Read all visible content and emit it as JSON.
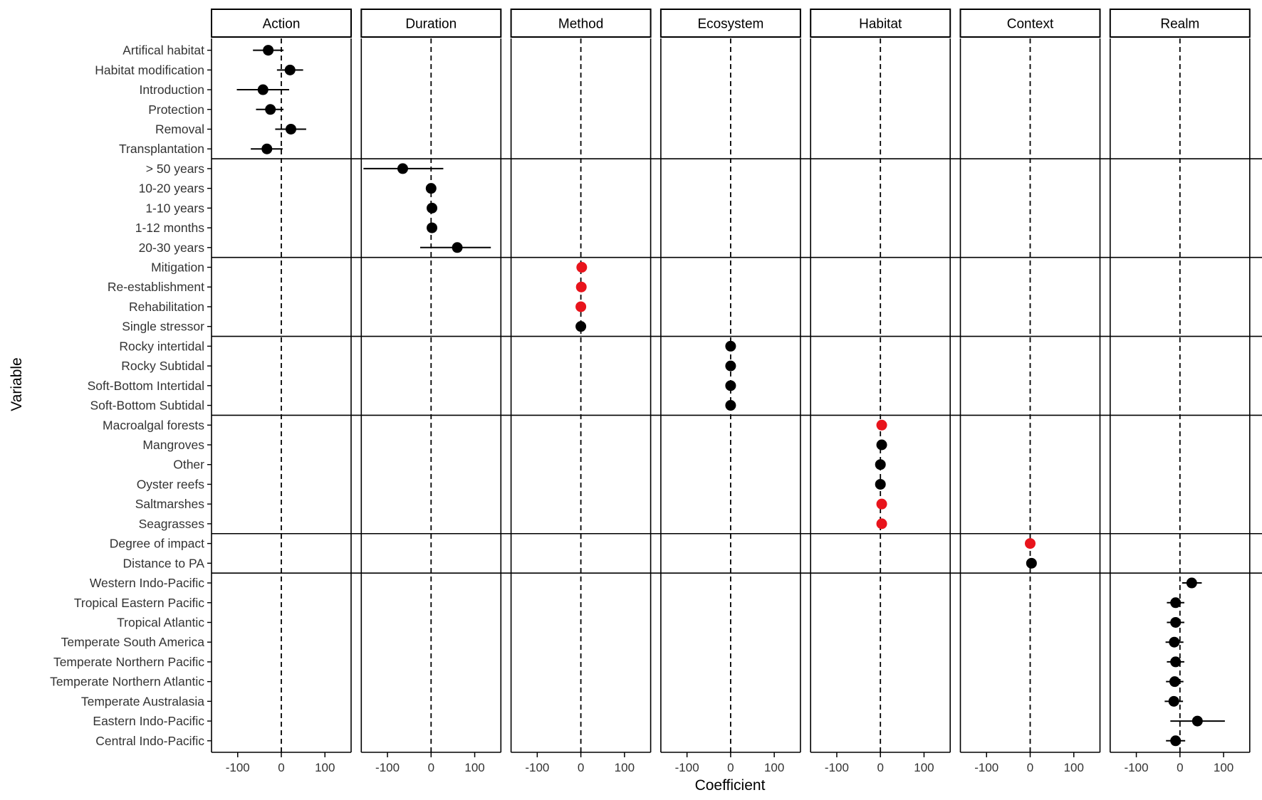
{
  "chart_data": {
    "type": "scatter",
    "xlabel": "Coefficient",
    "ylabel": "Variable",
    "xlim": [
      -160,
      160
    ],
    "x_ticks": [
      -100,
      0,
      100
    ],
    "reference_line": 0,
    "colors": {
      "point": "#000000",
      "highlight": "#e8141c"
    },
    "facets": [
      "Action",
      "Duration",
      "Method",
      "Ecosystem",
      "Habitat",
      "Context",
      "Realm"
    ],
    "groups": [
      {
        "facet": "Action",
        "items": [
          {
            "label": "Artifical habitat",
            "estimate": -30,
            "low": -65,
            "high": 5,
            "highlight": false
          },
          {
            "label": "Habitat modification",
            "estimate": 20,
            "low": -10,
            "high": 50,
            "highlight": false
          },
          {
            "label": "Introduction",
            "estimate": -42,
            "low": -102,
            "high": 18,
            "highlight": false
          },
          {
            "label": "Protection",
            "estimate": -25,
            "low": -58,
            "high": 5,
            "highlight": false
          },
          {
            "label": "Removal",
            "estimate": 22,
            "low": -14,
            "high": 57,
            "highlight": false
          },
          {
            "label": "Transplantation",
            "estimate": -33,
            "low": -70,
            "high": 3,
            "highlight": false
          }
        ]
      },
      {
        "facet": "Duration",
        "items": [
          {
            "label": "> 50 years",
            "estimate": -65,
            "low": -155,
            "high": 28,
            "highlight": false
          },
          {
            "label": "10-20 years",
            "estimate": 0,
            "low": -5,
            "high": 5,
            "highlight": false
          },
          {
            "label": "1-10 years",
            "estimate": 2,
            "low": -3,
            "high": 7,
            "highlight": false
          },
          {
            "label": "1-12 months",
            "estimate": 2,
            "low": -3,
            "high": 7,
            "highlight": false
          },
          {
            "label": "20-30 years",
            "estimate": 60,
            "low": -25,
            "high": 137,
            "highlight": false
          }
        ]
      },
      {
        "facet": "Method",
        "items": [
          {
            "label": "Mitigation",
            "estimate": 2,
            "low": -4,
            "high": 8,
            "highlight": true
          },
          {
            "label": "Re-establishment",
            "estimate": 1,
            "low": -5,
            "high": 7,
            "highlight": true
          },
          {
            "label": "Rehabilitation",
            "estimate": 0,
            "low": -6,
            "high": 6,
            "highlight": true
          },
          {
            "label": "Single stressor",
            "estimate": 0,
            "low": -5,
            "high": 5,
            "highlight": false
          }
        ]
      },
      {
        "facet": "Ecosystem",
        "items": [
          {
            "label": "Rocky intertidal",
            "estimate": 0,
            "low": -5,
            "high": 5,
            "highlight": false
          },
          {
            "label": "Rocky Subtidal",
            "estimate": 0,
            "low": -5,
            "high": 5,
            "highlight": false
          },
          {
            "label": "Soft-Bottom Intertidal",
            "estimate": 0,
            "low": -5,
            "high": 5,
            "highlight": false
          },
          {
            "label": "Soft-Bottom Subtidal",
            "estimate": 0,
            "low": -5,
            "high": 5,
            "highlight": false
          }
        ]
      },
      {
        "facet": "Habitat",
        "items": [
          {
            "label": "Macroalgal forests",
            "estimate": 3,
            "low": -3,
            "high": 9,
            "highlight": true
          },
          {
            "label": "Mangroves",
            "estimate": 3,
            "low": -3,
            "high": 9,
            "highlight": false
          },
          {
            "label": "Other",
            "estimate": 0,
            "low": -5,
            "high": 5,
            "highlight": false
          },
          {
            "label": "Oyster reefs",
            "estimate": 0,
            "low": -5,
            "high": 5,
            "highlight": false
          },
          {
            "label": "Saltmarshes",
            "estimate": 3,
            "low": -3,
            "high": 9,
            "highlight": true
          },
          {
            "label": "Seagrasses",
            "estimate": 3,
            "low": -3,
            "high": 9,
            "highlight": true
          }
        ]
      },
      {
        "facet": "Context",
        "items": [
          {
            "label": "Degree of impact",
            "estimate": 0,
            "low": -5,
            "high": 5,
            "highlight": true
          },
          {
            "label": "Distance to PA",
            "estimate": 3,
            "low": -2,
            "high": 8,
            "highlight": false
          }
        ]
      },
      {
        "facet": "Realm",
        "items": [
          {
            "label": "Western Indo-Pacific",
            "estimate": 27,
            "low": 5,
            "high": 50,
            "highlight": false
          },
          {
            "label": "Tropical Eastern Pacific",
            "estimate": -10,
            "low": -30,
            "high": 10,
            "highlight": false
          },
          {
            "label": "Tropical Atlantic",
            "estimate": -10,
            "low": -30,
            "high": 10,
            "highlight": false
          },
          {
            "label": "Temperate South America",
            "estimate": -13,
            "low": -33,
            "high": 8,
            "highlight": false
          },
          {
            "label": "Temperate Northern Pacific",
            "estimate": -10,
            "low": -30,
            "high": 10,
            "highlight": false
          },
          {
            "label": "Temperate Northern Atlantic",
            "estimate": -12,
            "low": -32,
            "high": 8,
            "highlight": false
          },
          {
            "label": "Temperate Australasia",
            "estimate": -14,
            "low": -35,
            "high": 7,
            "highlight": false
          },
          {
            "label": "Eastern Indo-Pacific",
            "estimate": 40,
            "low": -22,
            "high": 103,
            "highlight": false
          },
          {
            "label": "Central Indo-Pacific",
            "estimate": -10,
            "low": -32,
            "high": 12,
            "highlight": false
          }
        ]
      }
    ]
  }
}
